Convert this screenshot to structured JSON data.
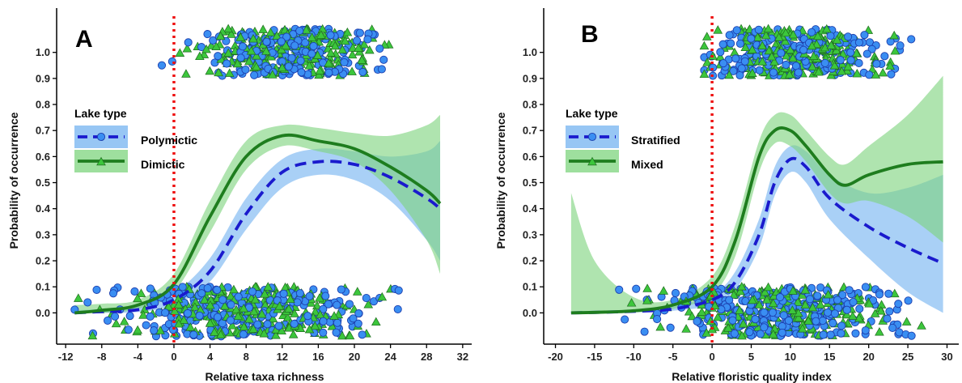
{
  "chart_data": [
    {
      "type": "line",
      "panel_label": "A",
      "xlabel": "Relative taxa richness",
      "ylabel": "Probability of occurrence",
      "xlim": [
        -13,
        33
      ],
      "ylim": [
        -0.12,
        1.17
      ],
      "xticks": [
        -12,
        -8,
        -4,
        0,
        4,
        8,
        12,
        16,
        20,
        24,
        28,
        32
      ],
      "yticks": [
        0.0,
        0.1,
        0.2,
        0.3,
        0.4,
        0.5,
        0.6,
        0.7,
        0.8,
        0.9,
        1.0
      ],
      "reference_line_x": 0,
      "legend": {
        "title": "Lake type",
        "position": "left-middle"
      },
      "series": [
        {
          "name": "Polymictic",
          "line_style": "dashed",
          "marker": "circle",
          "color": "#1a1acd",
          "band_color": "#74b3f0",
          "marker_color": "#3b8cf0",
          "x": [
            -11,
            -8,
            -4,
            0,
            4,
            8,
            12,
            16,
            20,
            24,
            28,
            29.5
          ],
          "y": [
            0.0,
            0.005,
            0.012,
            0.05,
            0.16,
            0.38,
            0.54,
            0.58,
            0.57,
            0.52,
            0.44,
            0.4
          ],
          "lower": [
            0.0,
            0.0,
            0.003,
            0.03,
            0.12,
            0.32,
            0.48,
            0.53,
            0.51,
            0.43,
            0.28,
            0.2
          ],
          "upper": [
            0.01,
            0.015,
            0.025,
            0.075,
            0.21,
            0.44,
            0.59,
            0.63,
            0.62,
            0.6,
            0.62,
            0.66
          ]
        },
        {
          "name": "Dimictic",
          "line_style": "solid",
          "marker": "triangle",
          "color": "#1e7d1e",
          "band_color": "#7ed47e",
          "marker_color": "#2fb52f",
          "x": [
            -11,
            -8,
            -4,
            0,
            4,
            8,
            12,
            16,
            20,
            24,
            28,
            29.5
          ],
          "y": [
            0.0,
            0.01,
            0.03,
            0.11,
            0.37,
            0.6,
            0.68,
            0.66,
            0.63,
            0.56,
            0.47,
            0.42
          ],
          "lower": [
            0.0,
            0.0,
            0.015,
            0.08,
            0.31,
            0.55,
            0.64,
            0.62,
            0.58,
            0.47,
            0.28,
            0.15
          ],
          "upper": [
            0.03,
            0.035,
            0.05,
            0.15,
            0.43,
            0.66,
            0.72,
            0.71,
            0.69,
            0.68,
            0.72,
            0.76
          ]
        }
      ]
    },
    {
      "type": "line",
      "panel_label": "B",
      "xlabel": "Relative floristic quality index",
      "ylabel": "Probability of occurrence",
      "xlim": [
        -21.5,
        31.5
      ],
      "ylim": [
        -0.12,
        1.17
      ],
      "xticks": [
        -20,
        -15,
        -10,
        -5,
        0,
        5,
        10,
        15,
        20,
        25,
        30
      ],
      "yticks": [
        0.0,
        0.1,
        0.2,
        0.3,
        0.4,
        0.5,
        0.6,
        0.7,
        0.8,
        0.9,
        1.0
      ],
      "reference_line_x": 0,
      "legend": {
        "title": "Lake type",
        "position": "left-middle"
      },
      "series": [
        {
          "name": "Stratified",
          "line_style": "dashed",
          "marker": "circle",
          "color": "#1a1acd",
          "band_color": "#74b3f0",
          "marker_color": "#3b8cf0",
          "x": [
            -18,
            -15,
            -10,
            -5,
            0,
            3,
            6,
            8,
            10,
            12,
            15,
            20,
            25,
            29.5
          ],
          "y": [
            0.0,
            0.002,
            0.006,
            0.015,
            0.05,
            0.12,
            0.3,
            0.5,
            0.59,
            0.56,
            0.44,
            0.33,
            0.25,
            0.19
          ],
          "lower": [
            0.0,
            0.0,
            0.002,
            0.008,
            0.03,
            0.09,
            0.25,
            0.45,
            0.54,
            0.5,
            0.36,
            0.21,
            0.08,
            0.0
          ],
          "upper": [
            0.005,
            0.008,
            0.012,
            0.025,
            0.07,
            0.16,
            0.36,
            0.56,
            0.64,
            0.62,
            0.53,
            0.46,
            0.48,
            0.53
          ]
        },
        {
          "name": "Mixed",
          "line_style": "solid",
          "marker": "triangle",
          "color": "#1e7d1e",
          "band_color": "#7ed47e",
          "marker_color": "#2fb52f",
          "x": [
            -18,
            -15,
            -10,
            -5,
            0,
            3,
            6,
            8,
            10,
            12,
            15,
            17,
            20,
            25,
            29.5
          ],
          "y": [
            0.0,
            0.002,
            0.008,
            0.03,
            0.1,
            0.28,
            0.6,
            0.7,
            0.7,
            0.64,
            0.53,
            0.49,
            0.53,
            0.57,
            0.58
          ],
          "lower": [
            0.0,
            0.0,
            0.002,
            0.015,
            0.07,
            0.22,
            0.54,
            0.65,
            0.64,
            0.58,
            0.46,
            0.42,
            0.43,
            0.37,
            0.27
          ],
          "upper": [
            0.46,
            0.2,
            0.06,
            0.05,
            0.14,
            0.34,
            0.66,
            0.76,
            0.76,
            0.7,
            0.6,
            0.57,
            0.64,
            0.76,
            0.91
          ]
        }
      ]
    }
  ]
}
